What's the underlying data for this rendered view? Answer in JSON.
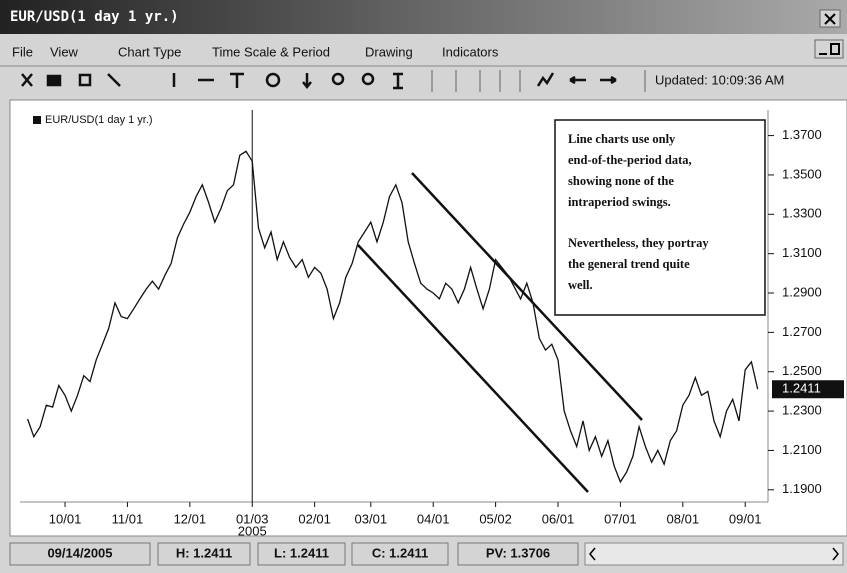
{
  "window": {
    "title": "EUR/USD(1 day  1 yr.)"
  },
  "menu": [
    "File",
    "View",
    "Chart Type",
    "Time Scale & Period",
    "Drawing",
    "Indicators"
  ],
  "toolbar": {
    "updated": "Updated: 10:09:36 AM"
  },
  "chart_data": {
    "type": "line",
    "series": [
      {
        "name": "EUR/USD(1 day  1 yr.)",
        "color": "#111111",
        "values": [
          1.226,
          1.217,
          1.222,
          1.233,
          1.232,
          1.243,
          1.238,
          1.23,
          1.238,
          1.248,
          1.245,
          1.256,
          1.264,
          1.272,
          1.285,
          1.278,
          1.277,
          1.282,
          1.287,
          1.292,
          1.296,
          1.292,
          1.299,
          1.305,
          1.318,
          1.325,
          1.331,
          1.339,
          1.345,
          1.336,
          1.326,
          1.333,
          1.342,
          1.345,
          1.36,
          1.362,
          1.357,
          1.323,
          1.313,
          1.321,
          1.307,
          1.316,
          1.308,
          1.303,
          1.307,
          1.298,
          1.303,
          1.3,
          1.292,
          1.277,
          1.285,
          1.298,
          1.305,
          1.316,
          1.321,
          1.326,
          1.316,
          1.326,
          1.339,
          1.345,
          1.336,
          1.316,
          1.305,
          1.295,
          1.292,
          1.29,
          1.287,
          1.295,
          1.292,
          1.285,
          1.292,
          1.303,
          1.292,
          1.282,
          1.292,
          1.307,
          1.303,
          1.299,
          1.293,
          1.287,
          1.295,
          1.285,
          1.267,
          1.261,
          1.264,
          1.256,
          1.23,
          1.22,
          1.212,
          1.225,
          1.21,
          1.217,
          1.207,
          1.215,
          1.202,
          1.194,
          1.199,
          1.207,
          1.222,
          1.212,
          1.204,
          1.21,
          1.203,
          1.215,
          1.22,
          1.233,
          1.238,
          1.247,
          1.238,
          1.24,
          1.225,
          1.217,
          1.23,
          1.236,
          1.225,
          1.251,
          1.255,
          1.2411
        ]
      }
    ],
    "categories": [
      null,
      null,
      null,
      null,
      null,
      null,
      "10/01",
      null,
      null,
      null,
      null,
      null,
      null,
      null,
      null,
      null,
      "11/01",
      null,
      null,
      null,
      null,
      null,
      null,
      null,
      null,
      null,
      "12/01",
      null,
      null,
      null,
      null,
      null,
      null,
      null,
      null,
      null,
      "01/03",
      null,
      null,
      null,
      null,
      null,
      null,
      null,
      null,
      null,
      "02/01",
      null,
      null,
      null,
      null,
      null,
      null,
      null,
      null,
      "03/01",
      null,
      null,
      null,
      null,
      null,
      null,
      null,
      null,
      null,
      "04/01",
      null,
      null,
      null,
      null,
      null,
      null,
      null,
      null,
      null,
      "05/02",
      null,
      null,
      null,
      null,
      null,
      null,
      null,
      null,
      null,
      "06/01",
      null,
      null,
      null,
      null,
      null,
      null,
      null,
      null,
      null,
      "07/01",
      null,
      null,
      null,
      null,
      null,
      null,
      null,
      null,
      null,
      "08/01",
      null,
      null,
      null,
      null,
      null,
      null,
      null,
      null,
      null,
      "09/01",
      null,
      null
    ],
    "year_label": "2005",
    "ylim": [
      1.1838,
      1.383
    ],
    "yticks": [
      {
        "value": 1.37,
        "label": "1.3700"
      },
      {
        "value": 1.35,
        "label": "1.3500"
      },
      {
        "value": 1.33,
        "label": "1.3300"
      },
      {
        "value": 1.31,
        "label": "1.3100"
      },
      {
        "value": 1.29,
        "label": "1.2900"
      },
      {
        "value": 1.27,
        "label": "1.2700"
      },
      {
        "value": 1.25,
        "label": "1.2500"
      },
      {
        "value": 1.23,
        "label": "1.2300"
      },
      {
        "value": 1.21,
        "label": "1.2100"
      },
      {
        "value": 1.19,
        "label": "1.1900"
      }
    ],
    "current": {
      "value": 1.2411,
      "label": "1.2411"
    },
    "annotation": [
      [
        "Line charts use only",
        "end-of-the-period data,",
        "showing none of the",
        "intraperiod swings."
      ],
      [
        "Nevertheless, they portray",
        "the general trend quite",
        "well."
      ]
    ]
  },
  "status": [
    "09/14/2005",
    "H: 1.2411",
    "L: 1.2411",
    "C: 1.2411",
    "PV: 1.3706"
  ]
}
